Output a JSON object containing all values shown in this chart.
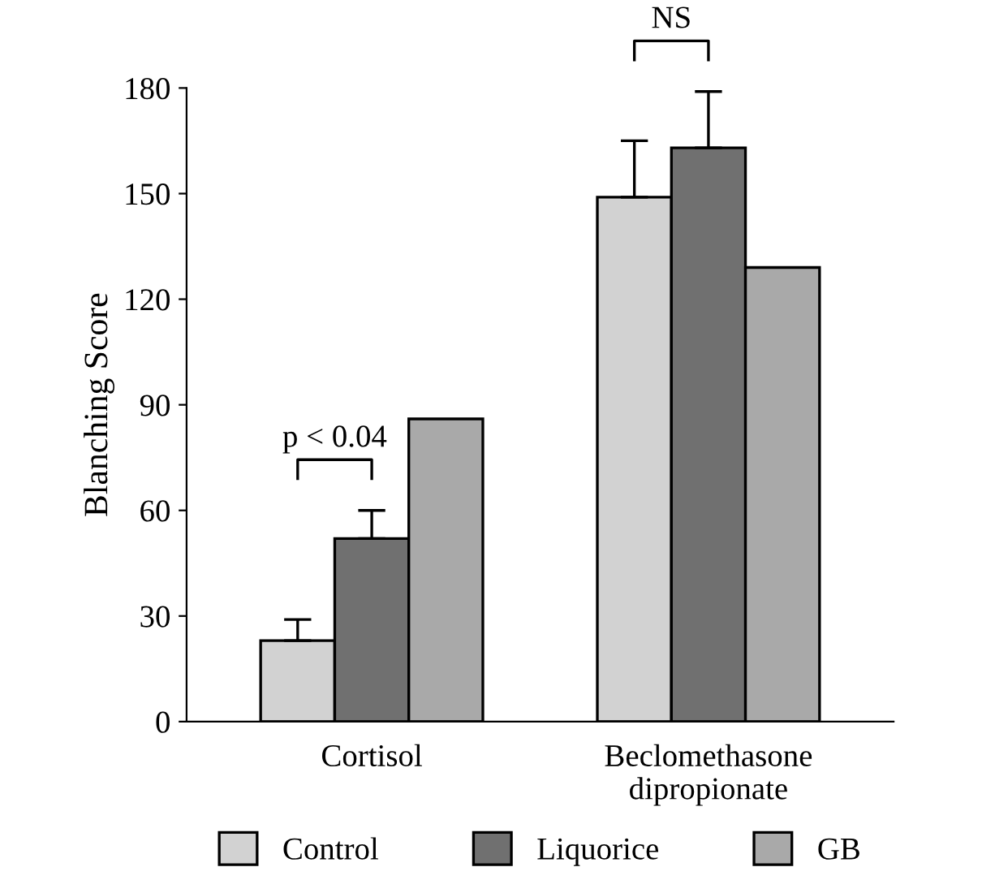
{
  "chart_data": {
    "type": "bar",
    "ylabel": "Blanching Score",
    "categories": [
      "Cortisol",
      "Beclomethasone\ndipropionate"
    ],
    "series": [
      {
        "name": "Control",
        "color": "#d2d2d2",
        "values": [
          23,
          149
        ],
        "errors": [
          [
            23,
            29
          ],
          [
            149,
            165
          ]
        ]
      },
      {
        "name": "Liquorice",
        "color": "#707070",
        "values": [
          52,
          163
        ],
        "errors": [
          [
            52,
            60
          ],
          [
            163,
            179
          ]
        ]
      },
      {
        "name": "GB",
        "color": "#a9a9a9",
        "values": [
          86,
          129
        ]
      }
    ],
    "ylim": [
      0,
      180
    ],
    "yticks": [
      0,
      30,
      60,
      90,
      120,
      150,
      180
    ],
    "grid": false,
    "legend": "bottom",
    "annotations": [
      "p < 0.04",
      "NS"
    ]
  }
}
